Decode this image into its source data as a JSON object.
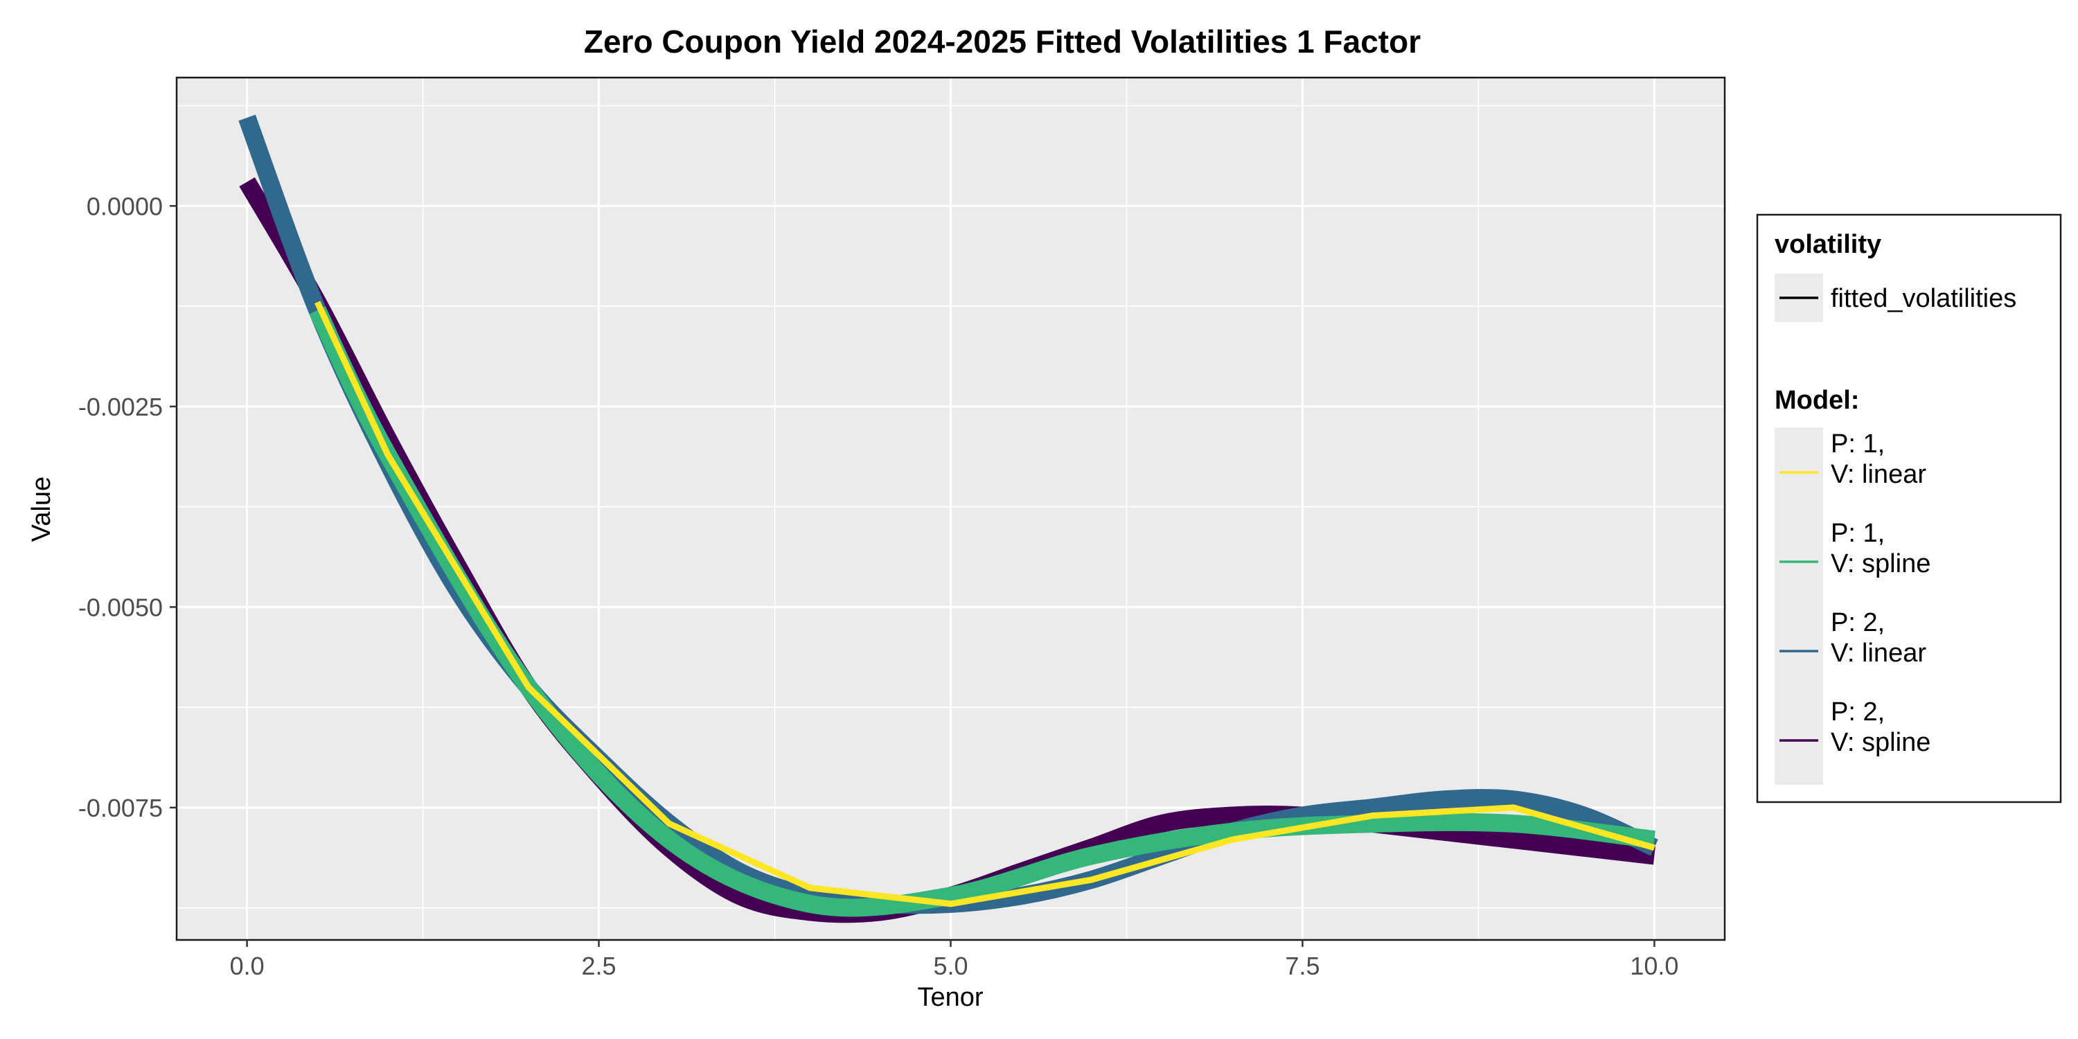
{
  "chart_data": {
    "type": "line",
    "title": "Zero Coupon Yield 2024-2025 Fitted Volatilities 1 Factor",
    "xlabel": "Tenor",
    "ylabel": "Value",
    "xlim": [
      -0.5,
      10.5
    ],
    "ylim": [
      -0.00915,
      0.0016
    ],
    "x_ticks": [
      0.0,
      2.5,
      5.0,
      7.5,
      10.0
    ],
    "x_tick_labels": [
      "0.0",
      "2.5",
      "5.0",
      "7.5",
      "10.0"
    ],
    "y_ticks": [
      0.0,
      -0.0025,
      -0.005,
      -0.0075
    ],
    "y_tick_labels": [
      "0.0000",
      "-0.0025",
      "-0.0050",
      "-0.0075"
    ],
    "grid": true,
    "legend_position": "right",
    "legend": {
      "volatility_title": "volatility",
      "volatility_entries": [
        {
          "label": "fitted_volatilities",
          "color": "#000000"
        }
      ],
      "model_title": "Model:",
      "model_entries": [
        {
          "line1": "P: 1,",
          "line2": "V: linear",
          "color": "#FDE725"
        },
        {
          "line1": "P: 1,",
          "line2": "V: spline",
          "color": "#35B779"
        },
        {
          "line1": "P: 2,",
          "line2": "V: linear",
          "color": "#31688E"
        },
        {
          "line1": "P: 2,",
          "line2": "V: spline",
          "color": "#440154"
        }
      ]
    },
    "series": [
      {
        "name": "P: 2, V: spline",
        "color": "#440154",
        "width": 26,
        "x": [
          0.0,
          0.5,
          1.0,
          1.5,
          2.0,
          2.5,
          3.0,
          3.5,
          4.0,
          4.5,
          5.0,
          5.5,
          6.0,
          6.5,
          7.0,
          7.5,
          8.0,
          8.5,
          9.0,
          9.5,
          10.0
        ],
        "y": [
          0.0003,
          -0.0012,
          -0.0029,
          -0.0045,
          -0.006,
          -0.0071,
          -0.008,
          -0.0086,
          -0.0088,
          -0.0088,
          -0.0086,
          -0.0083,
          -0.008,
          -0.0077,
          -0.0076,
          -0.0076,
          -0.0077,
          -0.0078,
          -0.0079,
          -0.008,
          -0.0081
        ]
      },
      {
        "name": "P: 2, V: linear",
        "color": "#31688E",
        "width": 26,
        "x": [
          0.0,
          0.5,
          1.0,
          1.5,
          2.0,
          2.5,
          3.0,
          3.5,
          4.0,
          4.5,
          5.0,
          5.5,
          6.0,
          6.5,
          7.0,
          7.5,
          8.0,
          8.5,
          9.0,
          9.5,
          10.0
        ],
        "y": [
          0.0011,
          -0.0013,
          -0.0032,
          -0.0048,
          -0.006,
          -0.0069,
          -0.0077,
          -0.0083,
          -0.0086,
          -0.0087,
          -0.0087,
          -0.0086,
          -0.0084,
          -0.0081,
          -0.0078,
          -0.0076,
          -0.0075,
          -0.0074,
          -0.0074,
          -0.0076,
          -0.008
        ]
      },
      {
        "name": "P: 1, V: spline",
        "color": "#35B779",
        "width": 26,
        "x": [
          0.5,
          1.0,
          2.0,
          3.0,
          4.0,
          5.0,
          6.0,
          7.0,
          8.0,
          9.0,
          10.0
        ],
        "y": [
          -0.0013,
          -0.0031,
          -0.006,
          -0.0079,
          -0.0087,
          -0.0086,
          -0.0081,
          -0.0078,
          -0.0077,
          -0.0077,
          -0.0079
        ]
      },
      {
        "name": "P: 1, V: linear",
        "color": "#FDE725",
        "width": 9,
        "x": [
          0.5,
          1.0,
          2.0,
          3.0,
          4.0,
          5.0,
          6.0,
          7.0,
          8.0,
          9.0,
          10.0
        ],
        "y": [
          -0.0012,
          -0.0031,
          -0.006,
          -0.0077,
          -0.0085,
          -0.0087,
          -0.0084,
          -0.0079,
          -0.0076,
          -0.0075,
          -0.008
        ]
      }
    ]
  }
}
